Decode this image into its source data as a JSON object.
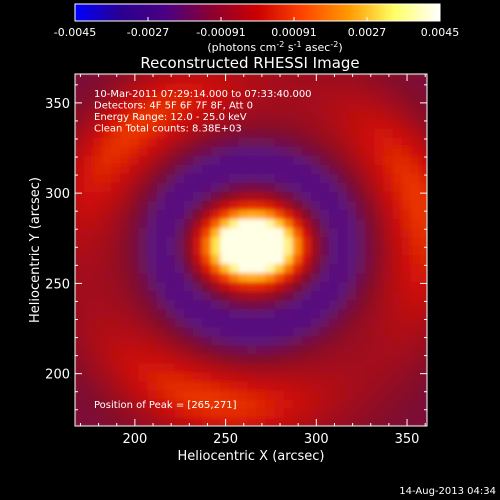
{
  "chart_data": {
    "type": "heatmap",
    "title": "Reconstructed RHESSI Image",
    "xlabel": "Heliocentric X (arcsec)",
    "ylabel": "Heliocentric Y (arcsec)",
    "xlim": [
      167,
      361
    ],
    "ylim": [
      171,
      366
    ],
    "x_ticks": [
      200,
      250,
      300,
      350
    ],
    "y_ticks": [
      200,
      250,
      300,
      350
    ],
    "colorbar": {
      "unit_base": "(photons cm",
      "unit_exp1": "-2",
      "unit_mid1": " s",
      "unit_exp2": "-1",
      "unit_mid2": " asec",
      "unit_exp3": "-2",
      "unit_end": ")",
      "min": -0.0045,
      "max": 0.0045,
      "ticks": [
        "-0.0045",
        "-0.0027",
        "-0.00091",
        "0.00091",
        "0.0027",
        "0.0045"
      ],
      "colors": [
        "#0000ff",
        "#2a0090",
        "#4b0082",
        "#8b0030",
        "#cc0000",
        "#ff4500",
        "#ff9900",
        "#ffff66",
        "#ffffff"
      ]
    },
    "annotations": [
      "10-Mar-2011 07:29:14.000 to 07:33:40.000",
      "Detectors: 4F 5F 6F 7F 8F, Att 0",
      "Energy Range: 12.0 - 25.0 keV",
      "Clean      Total counts: 8.38E+03"
    ],
    "peak_label": "Position of Peak = [265,271]",
    "peak": [
      265,
      271
    ],
    "footer_date": "14-Aug-2013 04:34"
  }
}
